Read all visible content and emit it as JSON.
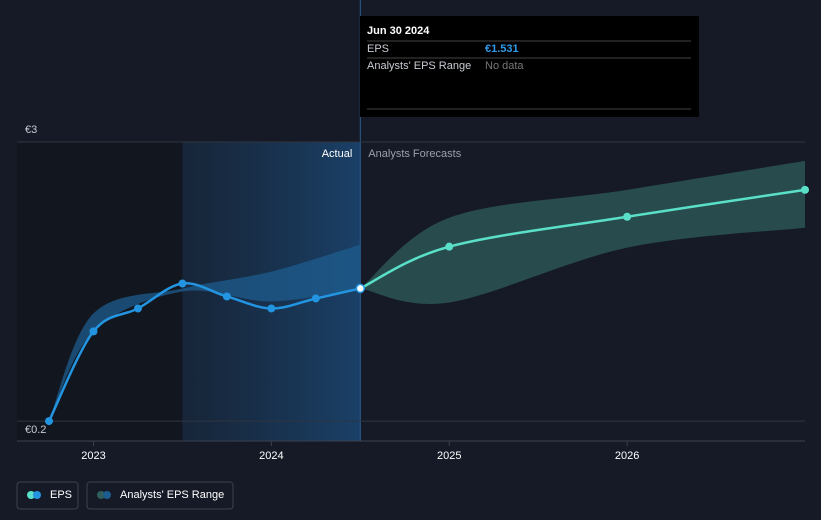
{
  "chart_data": {
    "type": "line",
    "x": [
      2022.75,
      2023,
      2023.25,
      2023.5,
      2023.75,
      2024,
      2024.25,
      2024.5,
      2025,
      2026,
      2027
    ],
    "series": [
      {
        "name": "EPS",
        "color": "#2394df",
        "forecast_color": "#5ae0c8",
        "values": [
          0.2,
          1.1,
          1.33,
          1.58,
          1.45,
          1.33,
          1.43,
          1.531,
          1.95,
          2.25,
          2.52
        ]
      }
    ],
    "range": {
      "name": "Analysts' EPS Range",
      "color": "#1d5c8e",
      "forecast_color": "#2f5e5c",
      "past": {
        "x": [
          2022.75,
          2023,
          2023.5,
          2024,
          2024.5
        ],
        "low": [
          0.2,
          1.1,
          1.5,
          1.4,
          1.531
        ],
        "high": [
          0.2,
          1.28,
          1.53,
          1.7,
          1.97
        ]
      },
      "forecast": {
        "x": [
          2024.5,
          2025,
          2026,
          2027
        ],
        "low": [
          1.531,
          1.39,
          1.94,
          2.14
        ],
        "high": [
          1.531,
          2.24,
          2.52,
          2.81
        ]
      }
    },
    "forecast_start": 2024.5,
    "highlight_start": 2023.5,
    "xlim": [
      2022.57,
      2027
    ],
    "xticks": [
      2023,
      2024,
      2025,
      2026
    ],
    "ylim": [
      0,
      3
    ],
    "yticks": [
      {
        "value": 0.2,
        "label": "€0.2"
      },
      {
        "value": 3,
        "label": "€3"
      }
    ],
    "annotations": {
      "actual": "Actual",
      "forecast": "Analysts Forecasts"
    },
    "tooltip": {
      "date": "Jun 30 2024",
      "eps_label": "EPS",
      "eps_value": "€1.531",
      "range_label": "Analysts' EPS Range",
      "range_value": "No data"
    }
  }
}
